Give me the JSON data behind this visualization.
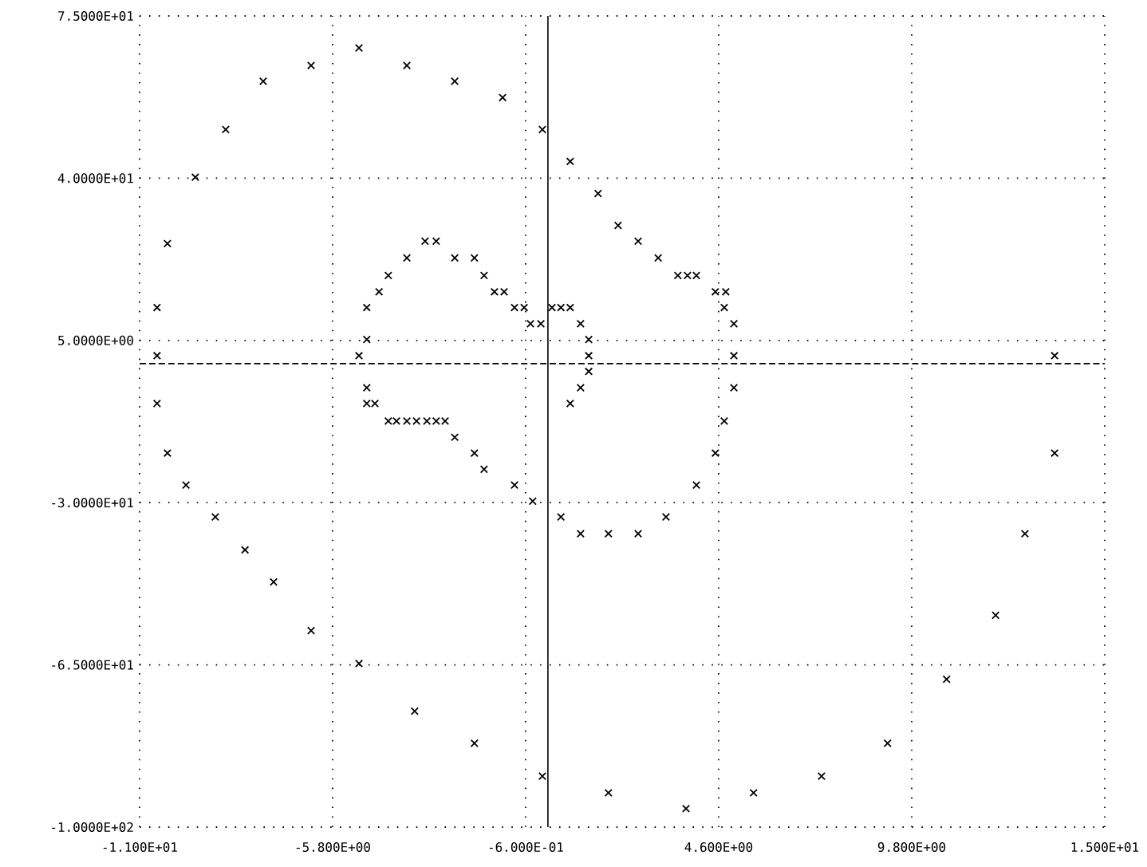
{
  "chart_data": {
    "type": "scatter",
    "marker": "cross",
    "grid": true,
    "xlim": [
      -11,
      15
    ],
    "ylim": [
      -100,
      75
    ],
    "xticks": [
      {
        "value": -11,
        "label": "-1.100E+01"
      },
      {
        "value": -5.8,
        "label": "-5.800E+00"
      },
      {
        "value": -0.6,
        "label": "-6.000E-01"
      },
      {
        "value": 4.6,
        "label": "4.600E+00"
      },
      {
        "value": 9.8,
        "label": "9.800E+00"
      },
      {
        "value": 15,
        "label": "1.500E+01"
      }
    ],
    "yticks": [
      {
        "value": -100,
        "label": "-1.0000E+02"
      },
      {
        "value": -65,
        "label": "-6.5000E+01"
      },
      {
        "value": -30,
        "label": "-3.0000E+01"
      },
      {
        "value": 5,
        "label": "5.0000E+00"
      },
      {
        "value": 40,
        "label": "4.0000E+01"
      },
      {
        "value": 75,
        "label": "7.5000E+01"
      }
    ],
    "ref_lines": [
      {
        "axis": "x",
        "value": 0,
        "line_style": "solid"
      },
      {
        "axis": "y",
        "value": 0,
        "line_style": "dashed"
      }
    ],
    "series": [
      {
        "color": "#000000",
        "x": [
          -10.53,
          -10.25,
          -9.5,
          -8.68,
          -7.67,
          -6.38,
          -5.09,
          -3.8,
          -2.51,
          -1.22,
          -0.15,
          0.6,
          1.35,
          1.89,
          2.43,
          2.97,
          3.5,
          3.76,
          4.0,
          4.51,
          4.79,
          4.75,
          5.01,
          5.01,
          5.01,
          4.75,
          4.51,
          4.0,
          3.18,
          2.43,
          1.63,
          0.88,
          0.35,
          0.6,
          0.88,
          1.1,
          1.1,
          1.1,
          0.88,
          0.6,
          0.35,
          0.11,
          -10.53,
          -10.53,
          -10.25,
          -9.75,
          -8.96,
          -8.16,
          -7.39,
          -6.38,
          -5.09,
          -3.59,
          -1.98,
          -0.15,
          1.63,
          3.72,
          5.54,
          7.37,
          9.15,
          10.74,
          12.06,
          12.85,
          13.65,
          13.65,
          -4.88,
          -4.55,
          -4.3,
          -3.8,
          -3.31,
          -3.01,
          -2.51,
          -1.98,
          -1.72,
          -1.44,
          -1.18,
          -0.9,
          -0.64,
          -0.47,
          -0.19,
          -4.88,
          -5.09,
          -4.88,
          -4.88,
          -4.66,
          -4.3,
          -4.08,
          -3.8,
          -3.54,
          -3.26,
          -3.01,
          -2.77,
          -2.51,
          -1.98,
          -1.72,
          -0.9,
          -0.41
        ],
        "values": [
          12.1,
          25.9,
          40.2,
          50.5,
          60.9,
          64.3,
          68.1,
          64.3,
          60.9,
          57.4,
          50.5,
          43.6,
          36.7,
          29.8,
          26.4,
          22.8,
          19.0,
          19.0,
          19.0,
          15.5,
          15.5,
          12.1,
          8.6,
          1.7,
          -5.2,
          -12.4,
          -19.3,
          -26.2,
          -33.1,
          -36.7,
          -36.7,
          -36.7,
          -33.1,
          -8.6,
          -5.2,
          -1.7,
          1.7,
          5.2,
          8.6,
          12.1,
          12.1,
          12.1,
          1.7,
          -8.6,
          -19.3,
          -26.2,
          -33.1,
          -40.2,
          -47.1,
          -57.6,
          -64.7,
          -75.0,
          -81.9,
          -89.0,
          -92.6,
          -96.0,
          -92.6,
          -89.0,
          -81.9,
          -68.1,
          -54.3,
          -36.7,
          -19.3,
          1.7,
          12.1,
          15.5,
          19.0,
          22.8,
          26.4,
          26.4,
          22.8,
          22.8,
          19.0,
          15.5,
          15.5,
          12.1,
          12.1,
          8.6,
          8.6,
          5.2,
          1.7,
          -5.2,
          -8.6,
          -8.6,
          -12.4,
          -12.4,
          -12.4,
          -12.4,
          -12.4,
          -12.4,
          -12.4,
          -15.9,
          -19.3,
          -22.8,
          -26.2,
          -29.7
        ]
      }
    ]
  }
}
